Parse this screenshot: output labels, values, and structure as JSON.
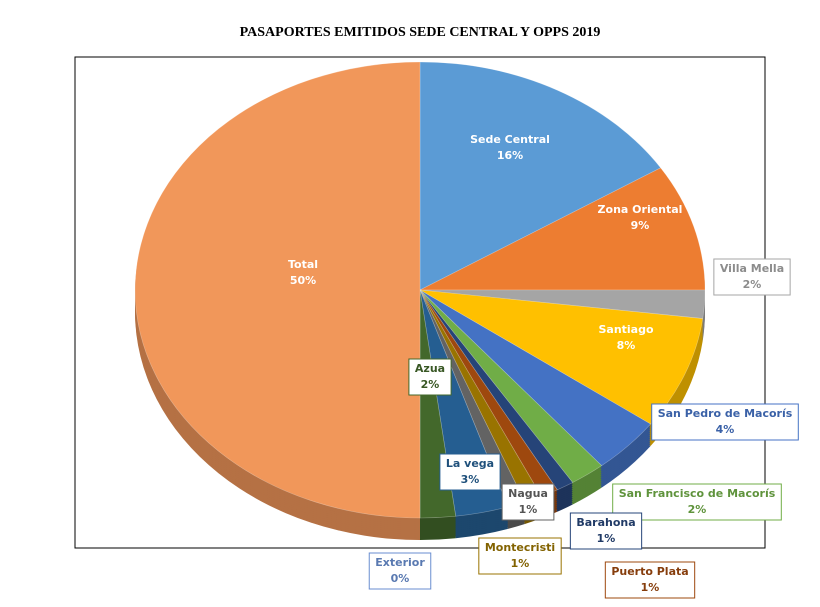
{
  "chart_data": {
    "type": "pie",
    "title": "PASAPORTES EMITIDOS SEDE CENTRAL Y OPPS 2019",
    "categories": [
      "Sede Central",
      "Zona Oriental",
      "Villa Mella",
      "Santiago",
      "San Pedro de Macorís",
      "San Francisco de Macorís",
      "Barahona",
      "Puerto Plata",
      "Montecristi",
      "Nagua",
      "La vega",
      "Azua",
      "Exterior",
      "Total"
    ],
    "values": [
      16,
      9,
      2,
      8,
      4,
      2,
      1,
      1,
      1,
      1,
      3,
      2,
      0,
      50
    ],
    "value_labels": [
      "16%",
      "9%",
      "2%",
      "8%",
      "4%",
      "2%",
      "1%",
      "1%",
      "1%",
      "1%",
      "3%",
      "2%",
      "0%",
      "50%"
    ],
    "colors": [
      "#5b9bd5",
      "#ed7d31",
      "#a5a5a5",
      "#ffc000",
      "#4472c4",
      "#70ad47",
      "#264478",
      "#9e480e",
      "#997300",
      "#636363",
      "#255e91",
      "#43682b",
      "#698ed0",
      "#f1975a"
    ]
  }
}
